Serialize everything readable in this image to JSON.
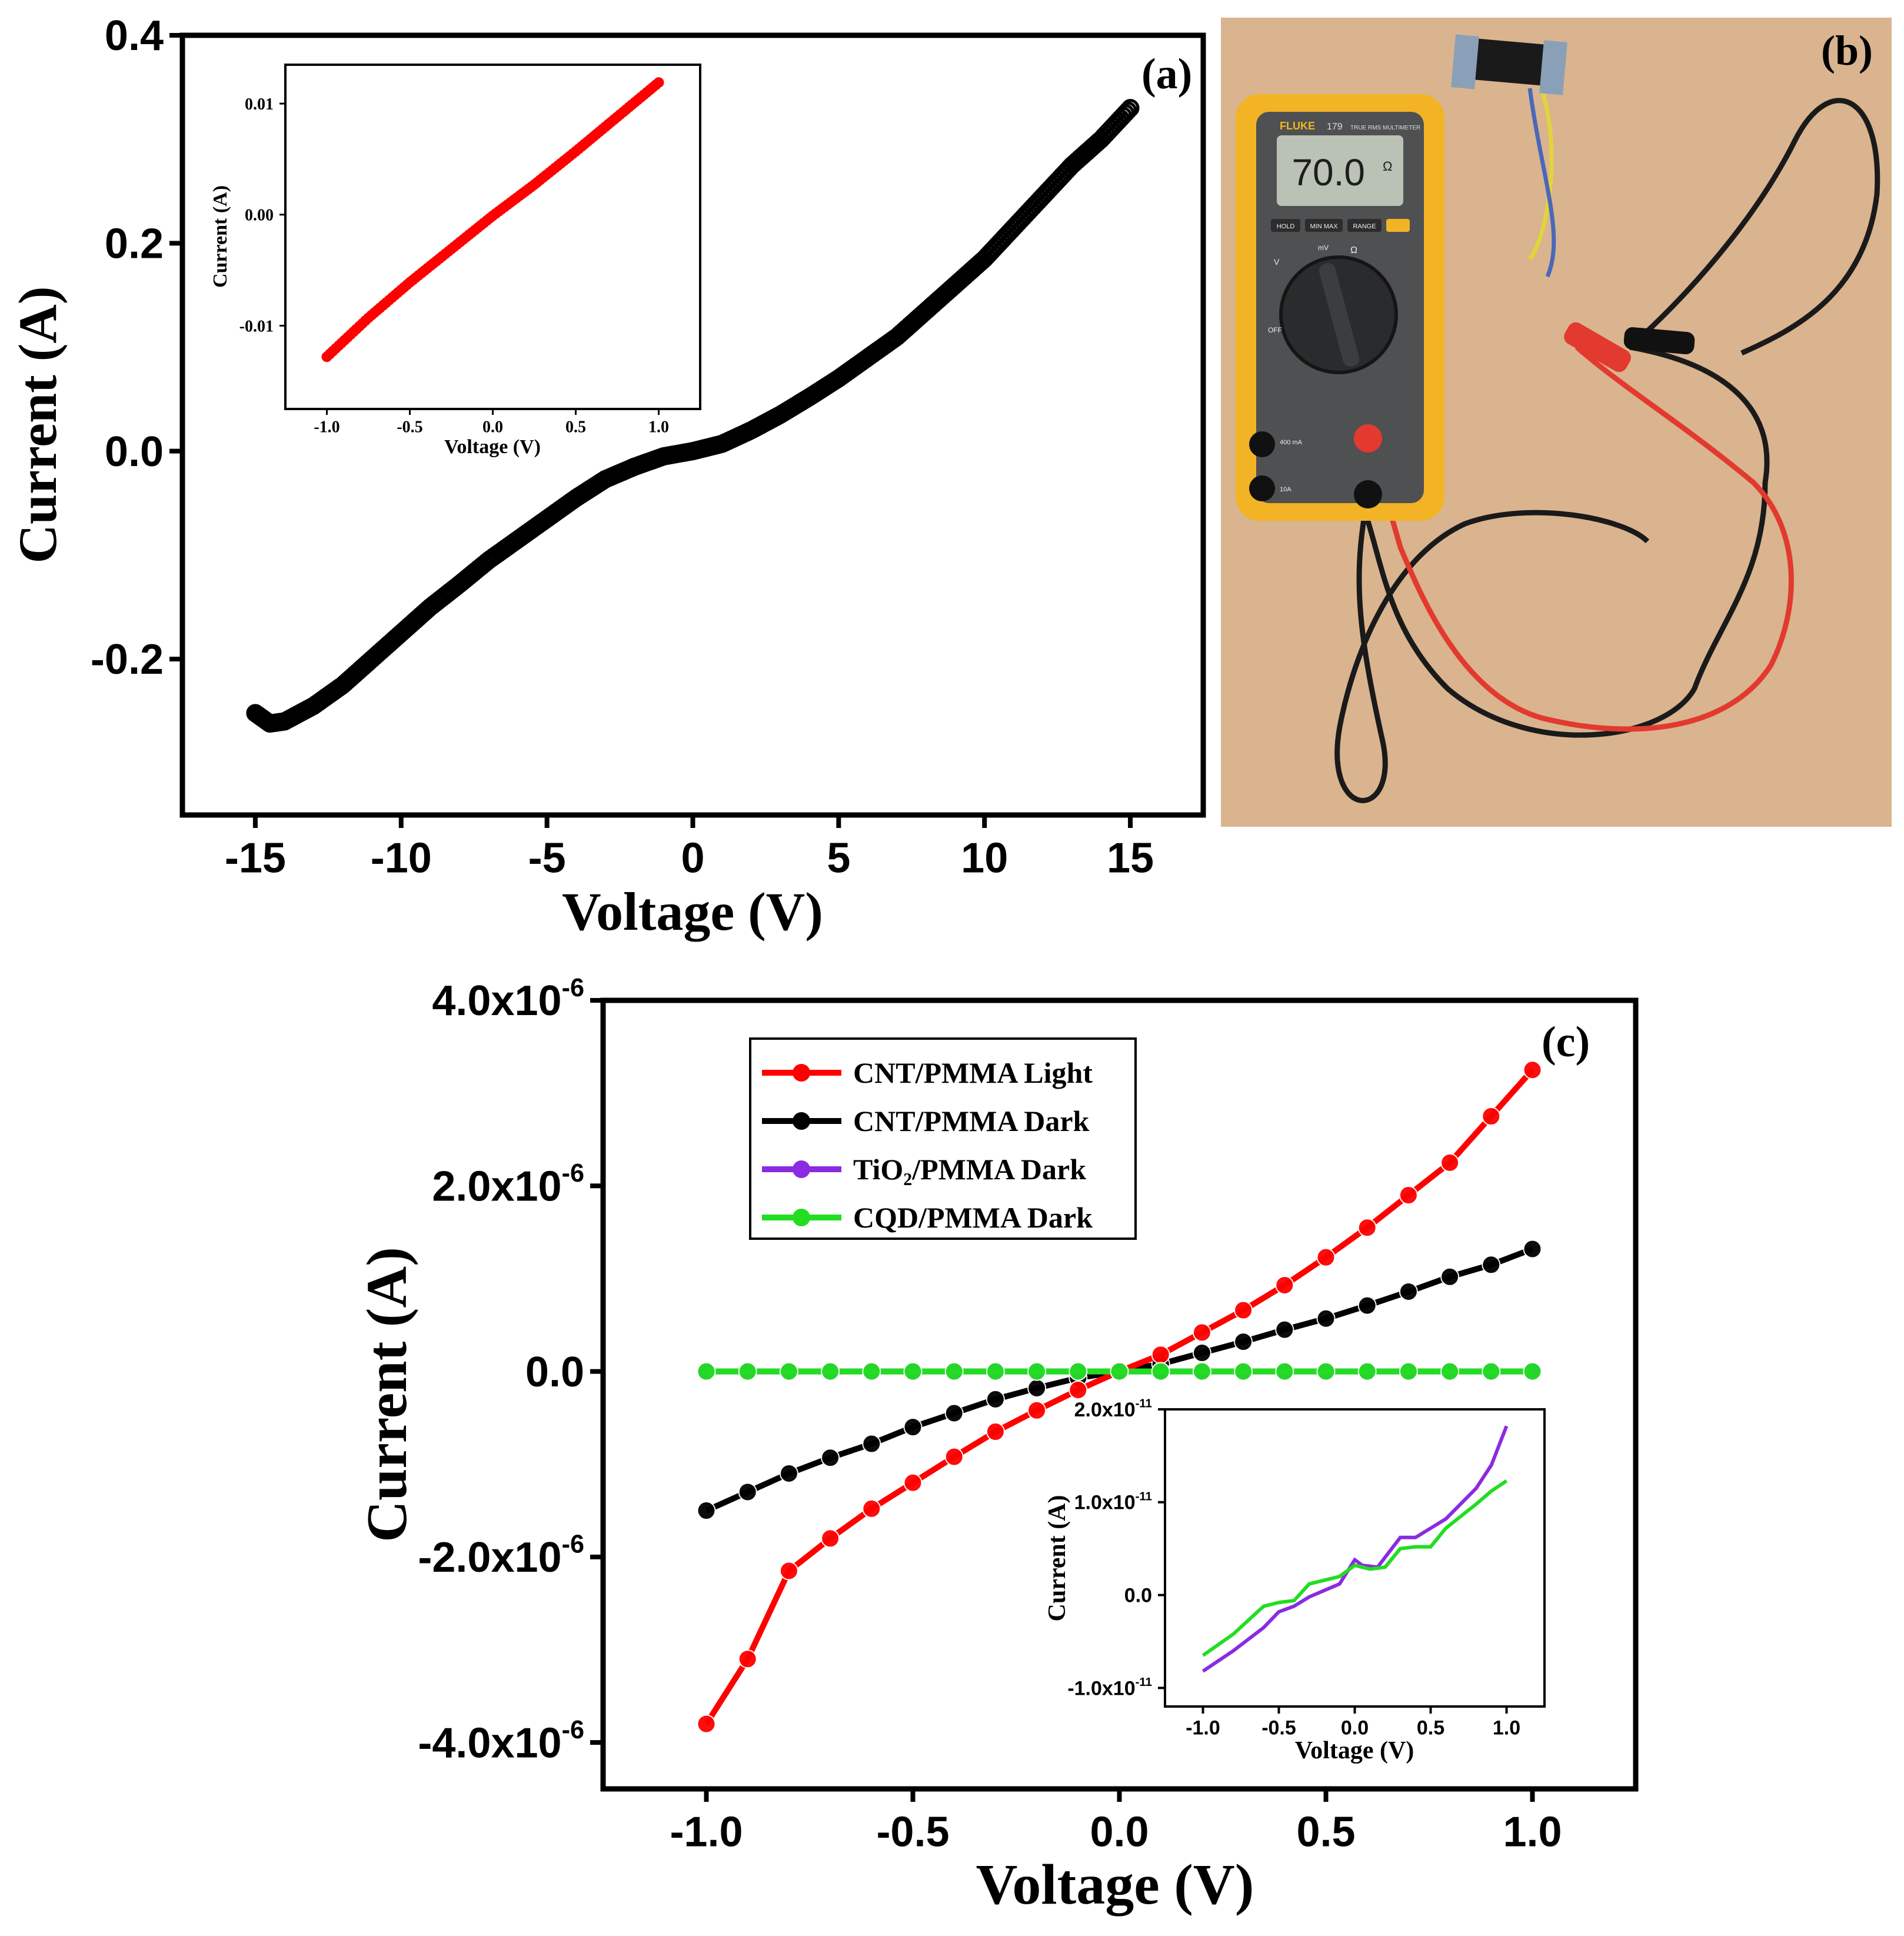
{
  "chart_data": [
    {
      "panel_label": "(a)",
      "type": "scatter",
      "xlabel": "Voltage (V)",
      "ylabel": "Current (A)",
      "xlim": [
        -17.5,
        17.5
      ],
      "ylim": [
        -0.35,
        0.4
      ],
      "xticks": [
        -15,
        -10,
        -5,
        0,
        5,
        10,
        15
      ],
      "xtick_labels": [
        "-15",
        "-10",
        "-5",
        "0",
        "5",
        "10",
        "15"
      ],
      "yticks": [
        -0.2,
        0.0,
        0.2,
        0.4
      ],
      "ytick_labels": [
        "-0.2",
        "0.0",
        "0.2",
        "0.4"
      ],
      "series": [
        {
          "color": "#000000",
          "marker": "open-circle",
          "x": [
            -15,
            -14.5,
            -14,
            -13,
            -12,
            -11,
            -10,
            -9,
            -8,
            -7,
            -6,
            -5,
            -4,
            -3,
            -2,
            -1,
            0,
            1,
            2,
            3,
            4,
            5,
            6,
            7,
            8,
            9,
            10,
            11,
            12,
            13,
            14,
            15
          ],
          "y": [
            -0.252,
            -0.262,
            -0.26,
            -0.245,
            -0.225,
            -0.2,
            -0.175,
            -0.15,
            -0.128,
            -0.105,
            -0.085,
            -0.065,
            -0.045,
            -0.027,
            -0.015,
            -0.005,
            0.0,
            0.007,
            0.02,
            0.035,
            0.052,
            0.07,
            0.09,
            0.11,
            0.135,
            0.16,
            0.185,
            0.215,
            0.245,
            0.275,
            0.3,
            0.33
          ]
        }
      ],
      "inset": {
        "type": "scatter",
        "xlabel": "Voltage (V)",
        "ylabel": "Current (A)",
        "xlim": [
          -1.25,
          1.25
        ],
        "ylim": [
          -0.0175,
          0.0135
        ],
        "xticks": [
          -1.0,
          -0.5,
          0.0,
          0.5,
          1.0
        ],
        "xtick_labels": [
          "-1.0",
          "-0.5",
          "0.0",
          "0.5",
          "1.0"
        ],
        "yticks": [
          -0.01,
          0.0,
          0.01
        ],
        "ytick_labels": [
          "-0.01",
          "0.00",
          "0.01"
        ],
        "series": [
          {
            "color": "#ff0000",
            "x": [
              -1.0,
              -0.75,
              -0.5,
              -0.25,
              0.0,
              0.25,
              0.5,
              0.75,
              1.0
            ],
            "y": [
              -0.0128,
              -0.0093,
              -0.0061,
              -0.0031,
              -0.0001,
              0.0027,
              0.0057,
              0.0088,
              0.0119
            ]
          }
        ]
      }
    },
    {
      "panel_label": "(c)",
      "type": "line",
      "xlabel": "Voltage (V)",
      "ylabel": "Current (A)",
      "xlim": [
        -1.25,
        1.25
      ],
      "ylim": [
        -4.5e-06,
        4e-06
      ],
      "xticks": [
        -1.0,
        -0.5,
        0.0,
        0.5,
        1.0
      ],
      "xtick_labels": [
        "-1.0",
        "-0.5",
        "0.0",
        "0.5",
        "1.0"
      ],
      "yticks": [
        -4e-06,
        -2e-06,
        0,
        2e-06,
        4e-06
      ],
      "ytick_labels": [
        {
          "base": "-4.0x10",
          "exp": "-6"
        },
        {
          "base": "-2.0x10",
          "exp": "-6"
        },
        {
          "base": "0.0",
          "exp": ""
        },
        {
          "base": "2.0x10",
          "exp": "-6"
        },
        {
          "base": "4.0x10",
          "exp": "-6"
        }
      ],
      "legend_position": "top-left",
      "x": [
        -1.0,
        -0.9,
        -0.8,
        -0.7,
        -0.6,
        -0.5,
        -0.4,
        -0.3,
        -0.2,
        -0.1,
        0.0,
        0.1,
        0.2,
        0.3,
        0.4,
        0.5,
        0.6,
        0.7,
        0.8,
        0.9,
        1.0
      ],
      "series": [
        {
          "name": "CNT/PMMA Light",
          "color": "#ff0000",
          "values": [
            -3.8e-06,
            -3.1e-06,
            -2.15e-06,
            -1.8e-06,
            -1.48e-06,
            -1.2e-06,
            -9.2e-07,
            -6.5e-07,
            -4.2e-07,
            -2e-07,
            0.0,
            1.8e-07,
            4.2e-07,
            6.6e-07,
            9.3e-07,
            1.23e-06,
            1.55e-06,
            1.9e-06,
            2.25e-06,
            2.75e-06,
            3.25e-06
          ]
        },
        {
          "name": "CNT/PMMA Dark",
          "color": "#000000",
          "values": [
            -1.5e-06,
            -1.3e-06,
            -1.1e-06,
            -9.3e-07,
            -7.8e-07,
            -6e-07,
            -4.5e-07,
            -3e-07,
            -1.8e-07,
            -7e-08,
            0.0,
            8e-08,
            2e-07,
            3.2e-07,
            4.5e-07,
            5.7e-07,
            7.1e-07,
            8.6e-07,
            1.02e-06,
            1.15e-06,
            1.32e-06
          ]
        },
        {
          "name": "TiO₂/PMMA Dark",
          "color": "#8a2be2",
          "values": [
            0,
            0,
            0,
            0,
            0,
            0,
            0,
            0,
            0,
            0,
            0,
            0,
            0,
            0,
            0,
            0,
            0,
            0,
            0,
            0,
            0
          ]
        },
        {
          "name": "CQD/PMMA Dark",
          "color": "#22dd22",
          "values": [
            0,
            0,
            0,
            0,
            0,
            0,
            0,
            0,
            0,
            0,
            0,
            0,
            0,
            0,
            0,
            0,
            0,
            0,
            0,
            0,
            0
          ]
        }
      ],
      "inset": {
        "type": "line",
        "xlabel": "Voltage (V)",
        "ylabel": "Current (A)",
        "xlim": [
          -1.25,
          1.25
        ],
        "ylim": [
          -1.2e-11,
          2e-11
        ],
        "xticks": [
          -1.0,
          -0.5,
          0.0,
          0.5,
          1.0
        ],
        "xtick_labels": [
          "-1.0",
          "-0.5",
          "0.0",
          "0.5",
          "1.0"
        ],
        "yticks": [
          -1e-11,
          0,
          1e-11,
          2e-11
        ],
        "ytick_labels": [
          {
            "base": "-1.0x10",
            "exp": "-11"
          },
          {
            "base": "0.0",
            "exp": ""
          },
          {
            "base": "1.0x10",
            "exp": "-11"
          },
          {
            "base": "2.0x10",
            "exp": "-11"
          }
        ],
        "series": [
          {
            "color": "#8a2be2",
            "x": [
              -1.0,
              -0.8,
              -0.6,
              -0.5,
              -0.4,
              -0.3,
              -0.1,
              0.0,
              0.05,
              0.15,
              0.3,
              0.4,
              0.5,
              0.6,
              0.8,
              0.9,
              1.0
            ],
            "values": [
              -8.2e-12,
              -6e-12,
              -3.5e-12,
              -1.8e-12,
              -1.2e-12,
              -2e-13,
              1.2e-12,
              3.8e-12,
              3.2e-12,
              3e-12,
              6.2e-12,
              6.2e-12,
              7.2e-12,
              8.2e-12,
              1.15e-11,
              1.4e-11,
              1.82e-11
            ]
          },
          {
            "color": "#22dd22",
            "x": [
              -1.0,
              -0.8,
              -0.6,
              -0.5,
              -0.4,
              -0.3,
              -0.1,
              0.0,
              0.1,
              0.2,
              0.3,
              0.4,
              0.5,
              0.6,
              0.8,
              0.9,
              1.0
            ],
            "values": [
              -6.5e-12,
              -4.2e-12,
              -1.2e-12,
              -8e-13,
              -6e-13,
              1.2e-12,
              2e-12,
              3.2e-12,
              2.8e-12,
              3e-12,
              5e-12,
              5.2e-12,
              5.2e-12,
              7.2e-12,
              9.8e-12,
              1.12e-11,
              1.23e-11
            ]
          }
        ]
      }
    }
  ],
  "photo": {
    "panel_label": "(b)",
    "meter_brand": "FLUKE",
    "meter_model": "179",
    "meter_model_text": "TRUE RMS MULTIMETER",
    "meter_reading": "70.0",
    "meter_unit": "Ω",
    "meter_buttons": [
      "HOLD",
      "MIN MAX",
      "RANGE"
    ],
    "meter_dial_labels": [
      "OFF",
      "V",
      "mV",
      "Ω"
    ],
    "meter_jack_labels": [
      "400 mA",
      "10A"
    ],
    "colors": {
      "table": "#d9b48f",
      "meter_body": "#f2b424",
      "meter_face": "#4e5052",
      "wire_red": "#e23a2f",
      "wire_black": "#1a1a1a",
      "wire_yellow": "#e2d43b",
      "wire_blue": "#4a68b8"
    }
  }
}
